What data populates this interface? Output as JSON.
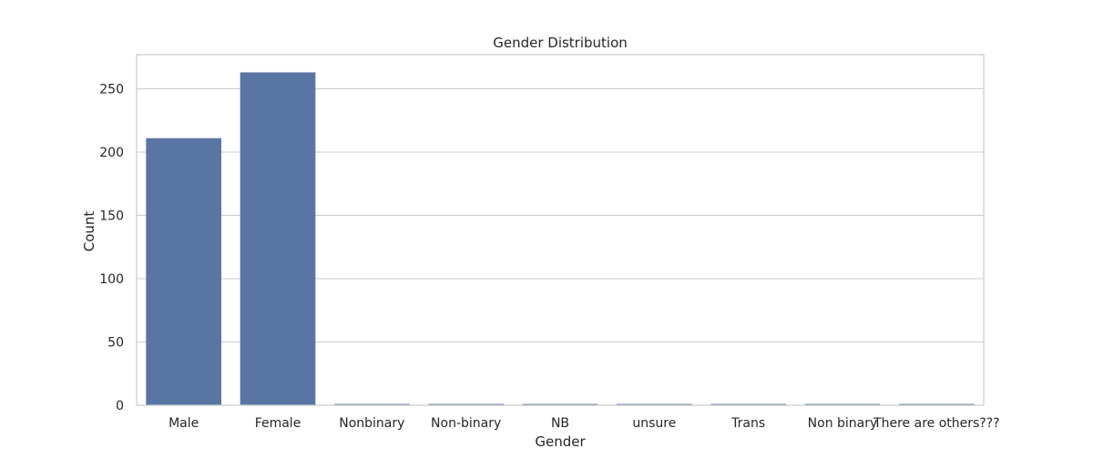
{
  "chart_data": {
    "type": "bar",
    "title": "Gender Distribution",
    "xlabel": "Gender",
    "ylabel": "Count",
    "categories": [
      "Male",
      "Female",
      "Nonbinary",
      "Non-binary",
      "NB",
      "unsure",
      "Trans",
      "Non binary",
      "There are others???"
    ],
    "values": [
      211,
      263,
      1,
      1,
      1,
      1,
      1,
      1,
      1
    ],
    "ylim": [
      0,
      277
    ],
    "yticks": [
      0,
      50,
      100,
      150,
      200,
      250
    ],
    "grid": "horizontal",
    "colors": {
      "bar": "#5975a4",
      "grid": "#cccccc",
      "frame": "#cccccc"
    }
  }
}
